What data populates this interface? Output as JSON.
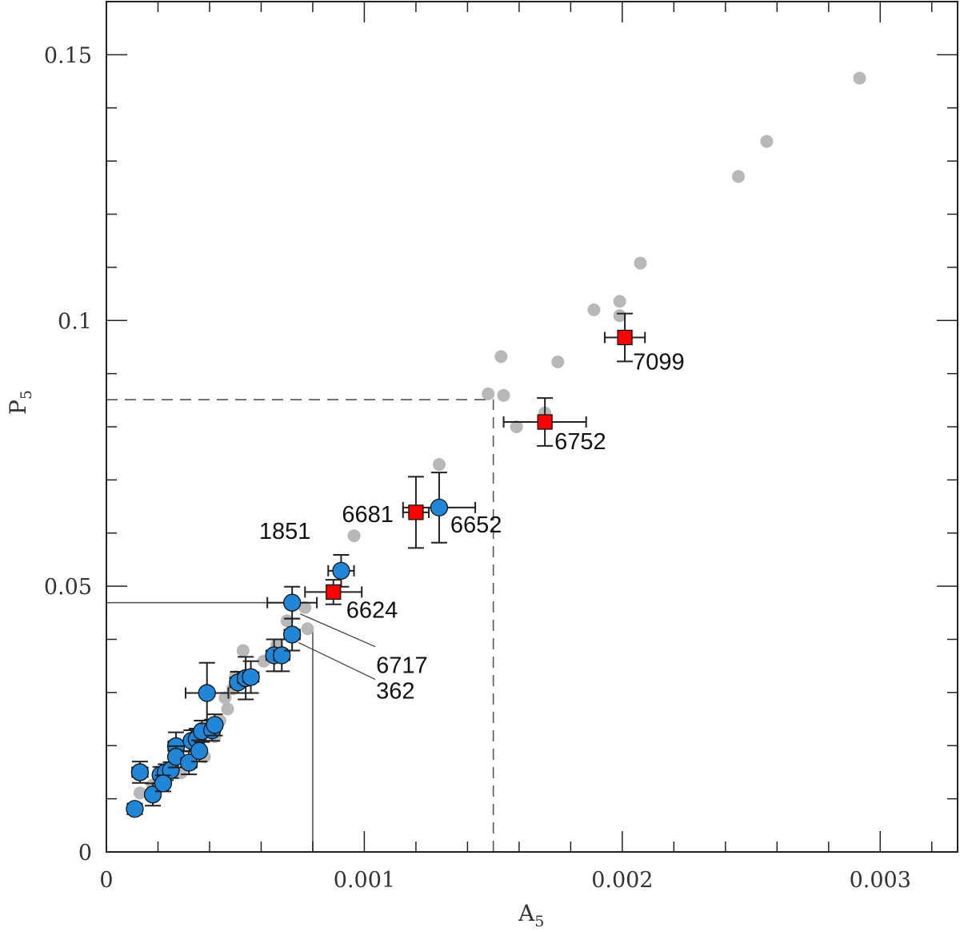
{
  "chart_data": {
    "type": "scatter",
    "title": "",
    "xlabel": "A",
    "xlabel_sub": "5",
    "ylabel": "P",
    "ylabel_sub": "5",
    "xlim": [
      0,
      0.0033
    ],
    "ylim": [
      0,
      0.16
    ],
    "x_ticks": [
      "0",
      "0.001",
      "0.002",
      "0.003"
    ],
    "x_tick_values": [
      0,
      0.001,
      0.002,
      0.003
    ],
    "y_ticks": [
      "0",
      "0.05",
      "0.1",
      "0.15"
    ],
    "y_tick_values": [
      0,
      0.05,
      0.1,
      0.15
    ],
    "x_minor_step": 0.0002,
    "y_minor_step": 0.01,
    "grid": false,
    "colors": {
      "background_points": "#b8b8b8",
      "blue_points": "#1f86d8",
      "red_points": "#ff0000",
      "error_bars": "#222222"
    },
    "background_points": [
      [
        0.00292,
        0.1456
      ],
      [
        0.00256,
        0.1337
      ],
      [
        0.00245,
        0.1271
      ],
      [
        0.00207,
        0.1108
      ],
      [
        0.00189,
        0.102
      ],
      [
        0.00199,
        0.1036
      ],
      [
        0.00199,
        0.1009
      ],
      [
        0.00153,
        0.0932
      ],
      [
        0.00175,
        0.0922
      ],
      [
        0.00148,
        0.0862
      ],
      [
        0.00154,
        0.0859
      ],
      [
        0.00159,
        0.08
      ],
      [
        0.0017,
        0.0826
      ],
      [
        0.00129,
        0.0729
      ],
      [
        0.00096,
        0.0595
      ],
      [
        0.00077,
        0.046
      ],
      [
        0.00078,
        0.042
      ],
      [
        0.0007,
        0.0435
      ],
      [
        0.00066,
        0.0389
      ],
      [
        0.00061,
        0.0359
      ],
      [
        0.00053,
        0.0379
      ],
      [
        0.00049,
        0.0307
      ],
      [
        0.00047,
        0.0269
      ],
      [
        0.00044,
        0.0247
      ],
      [
        0.00042,
        0.0217
      ],
      [
        0.00038,
        0.0179
      ],
      [
        0.00033,
        0.0164
      ],
      [
        0.00029,
        0.0149
      ],
      [
        0.00018,
        0.0126
      ],
      [
        0.00013,
        0.0111
      ],
      [
        0.00046,
        0.029
      ],
      [
        0.0005,
        0.033
      ]
    ],
    "blue_points": [
      {
        "x": 0.00011,
        "y": 0.0081,
        "xerr": 2e-05,
        "yerr": 0.001
      },
      {
        "x": 0.00013,
        "y": 0.015,
        "xerr": 3e-05,
        "yerr": 0.002
      },
      {
        "x": 0.00018,
        "y": 0.0108,
        "xerr": 2e-05,
        "yerr": 0.0021
      },
      {
        "x": 0.00021,
        "y": 0.0145,
        "xerr": 2e-05,
        "yerr": 0.0015
      },
      {
        "x": 0.00023,
        "y": 0.015,
        "xerr": 2e-05,
        "yerr": 0.0015
      },
      {
        "x": 0.00025,
        "y": 0.0154,
        "xerr": 2e-05,
        "yerr": 0.0015
      },
      {
        "x": 0.00022,
        "y": 0.0129,
        "xerr": 2e-05,
        "yerr": 0.0015
      },
      {
        "x": 0.00027,
        "y": 0.0199,
        "xerr": 3e-05,
        "yerr": 0.0026
      },
      {
        "x": 0.00027,
        "y": 0.0179,
        "xerr": 2e-05,
        "yerr": 0.002
      },
      {
        "x": 0.00032,
        "y": 0.0168,
        "xerr": 3e-05,
        "yerr": 0.0022
      },
      {
        "x": 0.00033,
        "y": 0.0209,
        "xerr": 2e-05,
        "yerr": 0.002
      },
      {
        "x": 0.00035,
        "y": 0.0212,
        "xerr": 2e-05,
        "yerr": 0.002
      },
      {
        "x": 0.00036,
        "y": 0.019,
        "xerr": 2e-05,
        "yerr": 0.002
      },
      {
        "x": 0.00037,
        "y": 0.0227,
        "xerr": 2e-05,
        "yerr": 0.002
      },
      {
        "x": 0.00039,
        "y": 0.0299,
        "xerr": 8.3e-05,
        "yerr": 0.0057
      },
      {
        "x": 0.00041,
        "y": 0.0229,
        "xerr": 2e-05,
        "yerr": 0.002
      },
      {
        "x": 0.00042,
        "y": 0.0239,
        "xerr": 2e-05,
        "yerr": 0.002
      },
      {
        "x": 0.00051,
        "y": 0.0319,
        "xerr": 3e-05,
        "yerr": 0.002
      },
      {
        "x": 0.00054,
        "y": 0.0327,
        "xerr": 3e-05,
        "yerr": 0.004
      },
      {
        "x": 0.00056,
        "y": 0.0329,
        "xerr": 3e-05,
        "yerr": 0.003
      },
      {
        "x": 0.00065,
        "y": 0.037,
        "xerr": 3e-05,
        "yerr": 0.003
      },
      {
        "x": 0.00068,
        "y": 0.037,
        "xerr": 3e-05,
        "yerr": 0.003
      },
      {
        "x": 0.00072,
        "y": 0.0409,
        "xerr": 3e-05,
        "yerr": 0.003,
        "label": "362"
      },
      {
        "x": 0.00072,
        "y": 0.0469,
        "xerr": 9.6e-05,
        "yerr": 0.003,
        "label": "6717"
      },
      {
        "x": 0.00091,
        "y": 0.0529,
        "xerr": 5e-05,
        "yerr": 0.003,
        "label": "1851"
      },
      {
        "x": 0.00129,
        "y": 0.0648,
        "xerr": 0.00014,
        "yerr": 0.0066,
        "label": "6652"
      }
    ],
    "red_points": [
      {
        "x": 0.00088,
        "y": 0.0489,
        "xerr": 0.00011,
        "yerr": 0.0023,
        "label": "6624"
      },
      {
        "x": 0.0012,
        "y": 0.0639,
        "xerr": 5e-05,
        "yerr": 0.0067,
        "label": "6681"
      },
      {
        "x": 0.0017,
        "y": 0.0809,
        "xerr": 0.00016,
        "yerr": 0.0045,
        "label": "6752"
      },
      {
        "x": 0.00201,
        "y": 0.0968,
        "xerr": 7.8e-05,
        "yerr": 0.0045,
        "label": "7099"
      }
    ],
    "reference_lines": [
      {
        "style": "solid",
        "x": 0.0008,
        "y_to": 0.042
      },
      {
        "style": "solid",
        "y": 0.0469,
        "x_to": 0.00072
      },
      {
        "style": "dashed",
        "x": 0.0015,
        "y_to": 0.0851
      },
      {
        "style": "dashed",
        "y": 0.0851,
        "x_to": 0.0015
      }
    ]
  }
}
